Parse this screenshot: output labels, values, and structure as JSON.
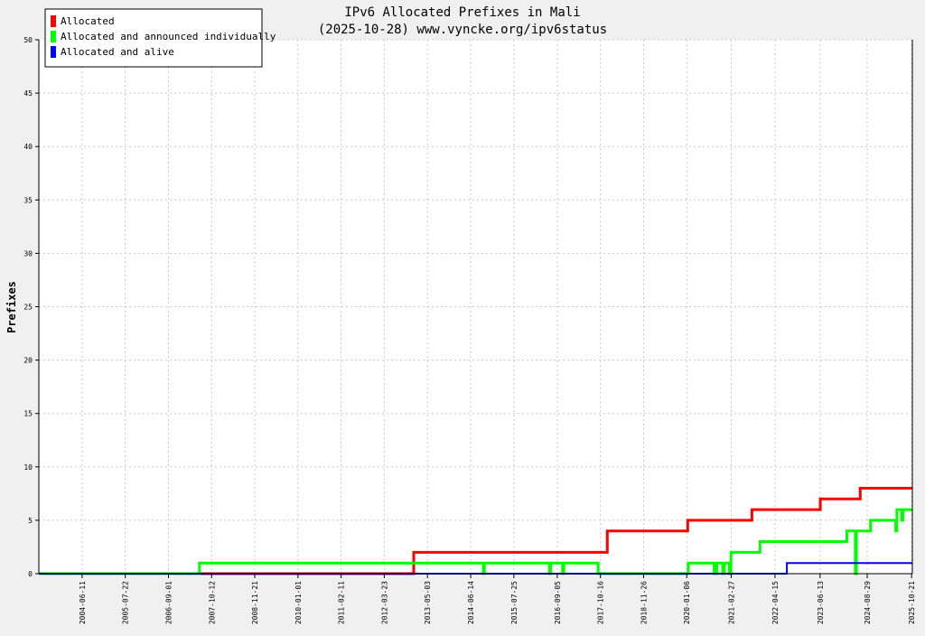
{
  "chart_data": {
    "type": "line",
    "title": "IPv6 Allocated Prefixes in Mali",
    "subtitle": "(2025-10-28) www.vyncke.org/ipv6status",
    "ylabel": "Prefixes",
    "xlabel": "",
    "ylim": [
      0,
      50
    ],
    "yticks": [
      0,
      5,
      10,
      15,
      20,
      25,
      30,
      35,
      40,
      45,
      50
    ],
    "xlim": [
      "2003-05-01",
      "2025-10-28"
    ],
    "xticks": [
      "2004-06-11",
      "2005-07-22",
      "2006-09-01",
      "2007-10-12",
      "2008-11-21",
      "2010-01-01",
      "2011-02-11",
      "2012-03-23",
      "2013-05-03",
      "2014-06-14",
      "2015-07-25",
      "2016-09-05",
      "2017-10-16",
      "2018-11-26",
      "2020-01-06",
      "2021-02-27",
      "2022-04-15",
      "2023-06-13",
      "2024-08-29",
      "2025-10-21"
    ],
    "grid": true,
    "legend_position": "top-left",
    "series": [
      {
        "name": "Allocated",
        "color": "#ff0000",
        "points": [
          [
            "2003-05-01",
            0
          ],
          [
            "2012-12-25",
            0
          ],
          [
            "2012-12-25",
            2
          ],
          [
            "2017-12-20",
            2
          ],
          [
            "2017-12-20",
            4
          ],
          [
            "2020-01-15",
            4
          ],
          [
            "2020-01-15",
            5
          ],
          [
            "2021-09-10",
            5
          ],
          [
            "2021-09-10",
            6
          ],
          [
            "2023-06-15",
            6
          ],
          [
            "2023-06-15",
            7
          ],
          [
            "2024-06-25",
            7
          ],
          [
            "2024-06-25",
            8
          ],
          [
            "2025-10-28",
            8
          ]
        ]
      },
      {
        "name": "Allocated and announced individually",
        "color": "#00ff00",
        "points": [
          [
            "2003-05-01",
            0
          ],
          [
            "2007-06-20",
            0
          ],
          [
            "2007-06-20",
            1
          ],
          [
            "2014-10-10",
            1
          ],
          [
            "2014-10-10",
            0
          ],
          [
            "2014-10-20",
            0
          ],
          [
            "2014-10-20",
            1
          ],
          [
            "2016-06-25",
            1
          ],
          [
            "2016-06-25",
            0
          ],
          [
            "2016-07-05",
            0
          ],
          [
            "2016-07-05",
            1
          ],
          [
            "2016-10-25",
            1
          ],
          [
            "2016-10-25",
            0
          ],
          [
            "2016-11-05",
            0
          ],
          [
            "2016-11-05",
            1
          ],
          [
            "2017-09-25",
            1
          ],
          [
            "2017-09-25",
            0
          ],
          [
            "2020-01-20",
            0
          ],
          [
            "2020-01-20",
            1
          ],
          [
            "2020-09-20",
            1
          ],
          [
            "2020-09-20",
            0
          ],
          [
            "2020-10-15",
            0
          ],
          [
            "2020-10-15",
            1
          ],
          [
            "2020-12-10",
            1
          ],
          [
            "2020-12-10",
            0
          ],
          [
            "2020-12-25",
            0
          ],
          [
            "2020-12-25",
            1
          ],
          [
            "2021-02-10",
            1
          ],
          [
            "2021-02-10",
            0
          ],
          [
            "2021-02-25",
            0
          ],
          [
            "2021-02-25",
            2
          ],
          [
            "2021-11-25",
            2
          ],
          [
            "2021-11-25",
            3
          ],
          [
            "2024-02-20",
            3
          ],
          [
            "2024-02-20",
            4
          ],
          [
            "2024-05-10",
            4
          ],
          [
            "2024-05-10",
            0
          ],
          [
            "2024-05-20",
            0
          ],
          [
            "2024-05-20",
            4
          ],
          [
            "2024-09-30",
            4
          ],
          [
            "2024-09-30",
            5
          ],
          [
            "2025-05-25",
            5
          ],
          [
            "2025-05-25",
            4
          ],
          [
            "2025-06-05",
            4
          ],
          [
            "2025-06-05",
            6
          ],
          [
            "2025-07-20",
            6
          ],
          [
            "2025-07-20",
            5
          ],
          [
            "2025-08-01",
            5
          ],
          [
            "2025-08-01",
            6
          ],
          [
            "2025-10-28",
            6
          ]
        ]
      },
      {
        "name": "Allocated and alive",
        "color": "#0000ff",
        "points": [
          [
            "2003-05-01",
            0
          ],
          [
            "2022-08-05",
            0
          ],
          [
            "2022-08-05",
            1
          ],
          [
            "2025-10-28",
            1
          ]
        ]
      }
    ]
  }
}
